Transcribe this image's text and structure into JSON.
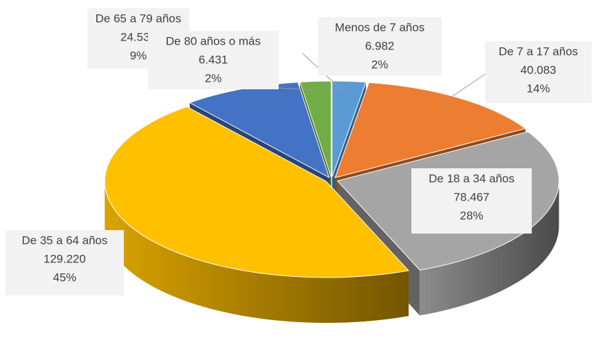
{
  "chart_data": {
    "type": "pie3d",
    "categories": [
      "Menos de 7 años",
      "De 7 a 17 años",
      "De 18 a 34 años",
      "De 35 a 64 años",
      "De 65 a 79 años",
      "De 80 años o más"
    ],
    "values": [
      6982,
      40083,
      78467,
      129220,
      24532,
      6431
    ],
    "value_labels": [
      "6.982",
      "40.083",
      "78.467",
      "129.220",
      "24.532",
      "6.431"
    ],
    "percent_labels": [
      "2%",
      "14%",
      "28%",
      "45%",
      "9%",
      "2%"
    ],
    "colors": [
      "#5b9bd5",
      "#ed7d31",
      "#a5a5a5",
      "#ffc000",
      "#4472c4",
      "#70ad47"
    ]
  }
}
